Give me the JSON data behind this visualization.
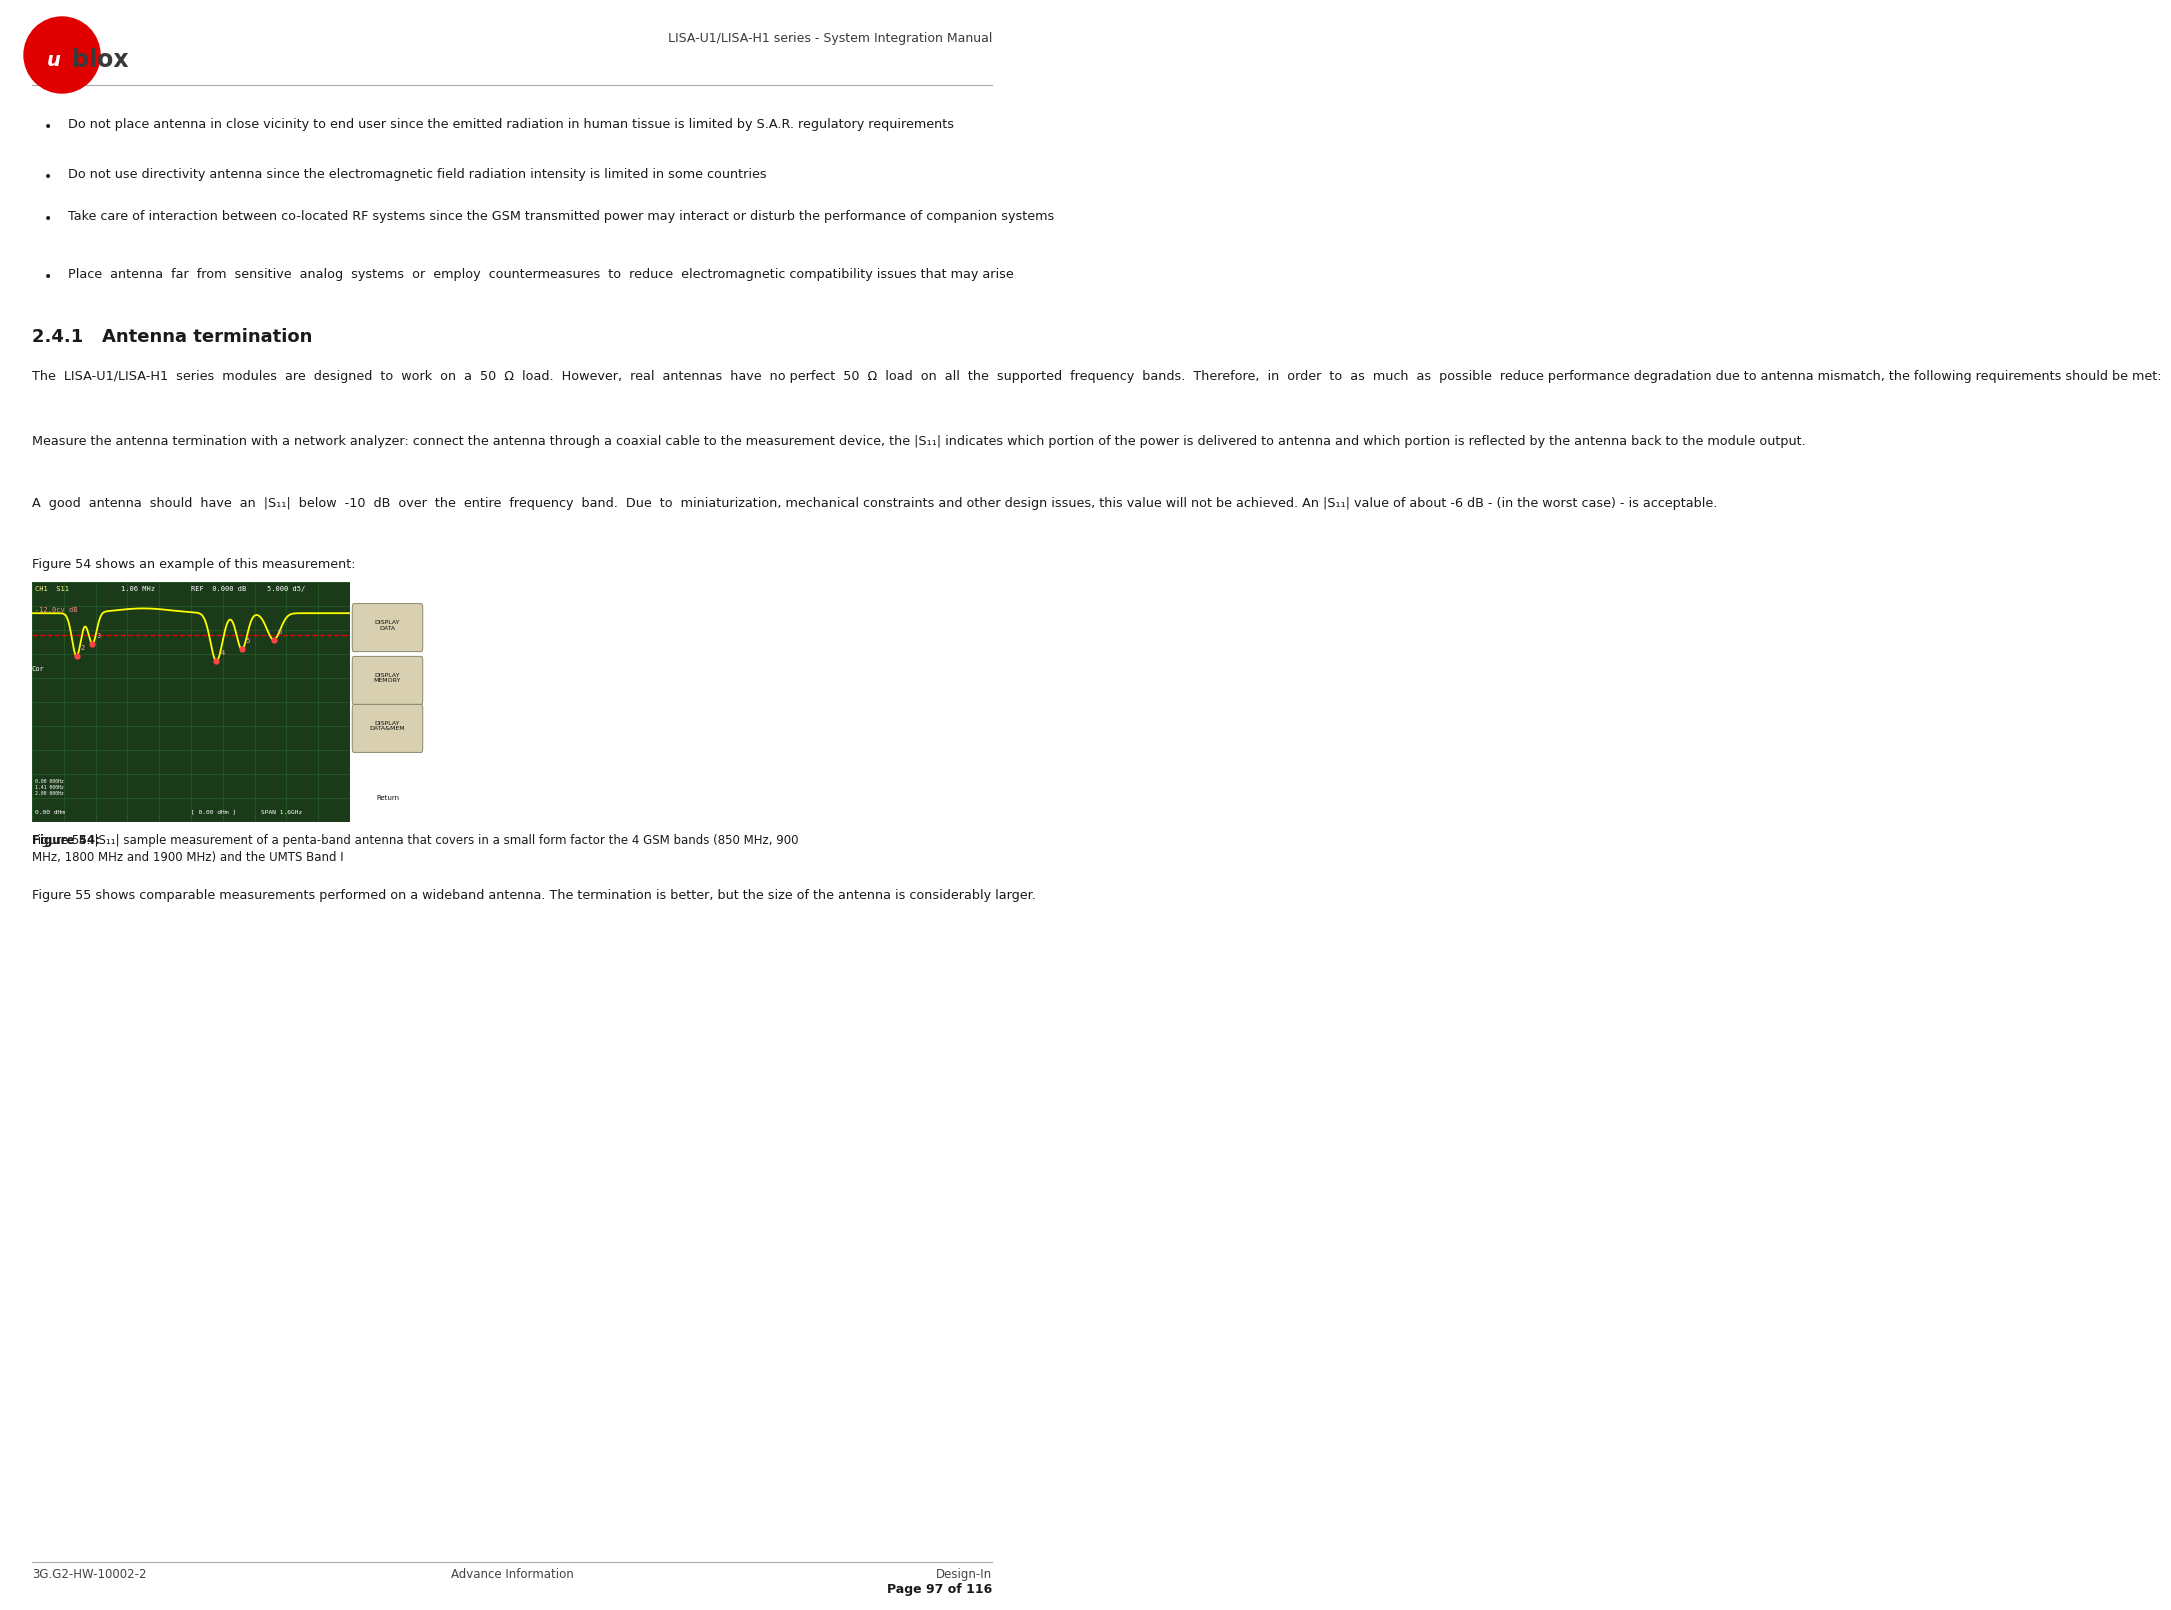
{
  "header_right_text": "LISA-U1/LISA-H1 series - System Integration Manual",
  "footer_left": "3G.G2-HW-10002-2",
  "footer_center": "Advance Information",
  "footer_right": "Design-In",
  "footer_page": "Page 97 of 116",
  "section_title": "2.4.1   Antenna termination",
  "bullet_points": [
    "Do not place antenna in close vicinity to end user since the emitted radiation in human tissue is limited by S.A.R. regulatory requirements",
    "Do not use directivity antenna since the electromagnetic field radiation intensity is limited in some countries",
    "Take care of interaction between co-located RF systems since the GSM transmitted power may interact or disturb the performance of companion systems",
    "Place  antenna  far  from  sensitive  analog  systems  or  employ  countermeasures  to  reduce  electromagnetic compatibility issues that may arise"
  ],
  "body_paragraphs": [
    "The  LISA-U1/LISA-H1  series  modules  are  designed  to  work  on  a  50  Ω  load.  However,  real  antennas  have  no perfect  50  Ω  load  on  all  the  supported  frequency  bands.  Therefore,  in  order  to  as  much  as  possible  reduce performance degradation due to antenna mismatch, the following requirements should be met:",
    "Measure the antenna termination with a network analyzer: connect the antenna through a coaxial cable to the measurement device, the |S₁₁| indicates which portion of the power is delivered to antenna and which portion is reflected by the antenna back to the module output.",
    "A  good  antenna  should  have  an  |S₁₁|  below  -10  dB  over  the  entire  frequency  band.  Due  to  miniaturization, mechanical constraints and other design issues, this value will not be achieved. An |S₁₁| value of about -6 dB - (in the worst case) - is acceptable.",
    "Figure 54 shows an example of this measurement:"
  ],
  "figure_caption": "Figure 54: |S₁₁| sample measurement of a penta-band antenna that covers in a small form factor the 4 GSM bands (850 MHz, 900\nMHz, 1800 MHz and 1900 MHz) and the UMTS Band I",
  "after_figure_text": "Figure 55 shows comparable measurements performed on a wideband antenna. The termination is better, but the size of the antenna is considerably larger.",
  "bg_color": "#ffffff",
  "text_color": "#1a1a1a",
  "logo_circle_color": "#e00000",
  "logo_text_color": "#3a3a3a",
  "header_line_color": "#aaaaaa",
  "screen_bg": "#1a3a1a",
  "screen_grid": "#2a6a2a",
  "screen_trace": "#ffff00",
  "screen_marker": "#ff4444",
  "screen_ref_line": "#ff0000",
  "right_panel_bg": "#c0b090",
  "button_bg": "#d8d0b0",
  "button_edge": "#888870"
}
